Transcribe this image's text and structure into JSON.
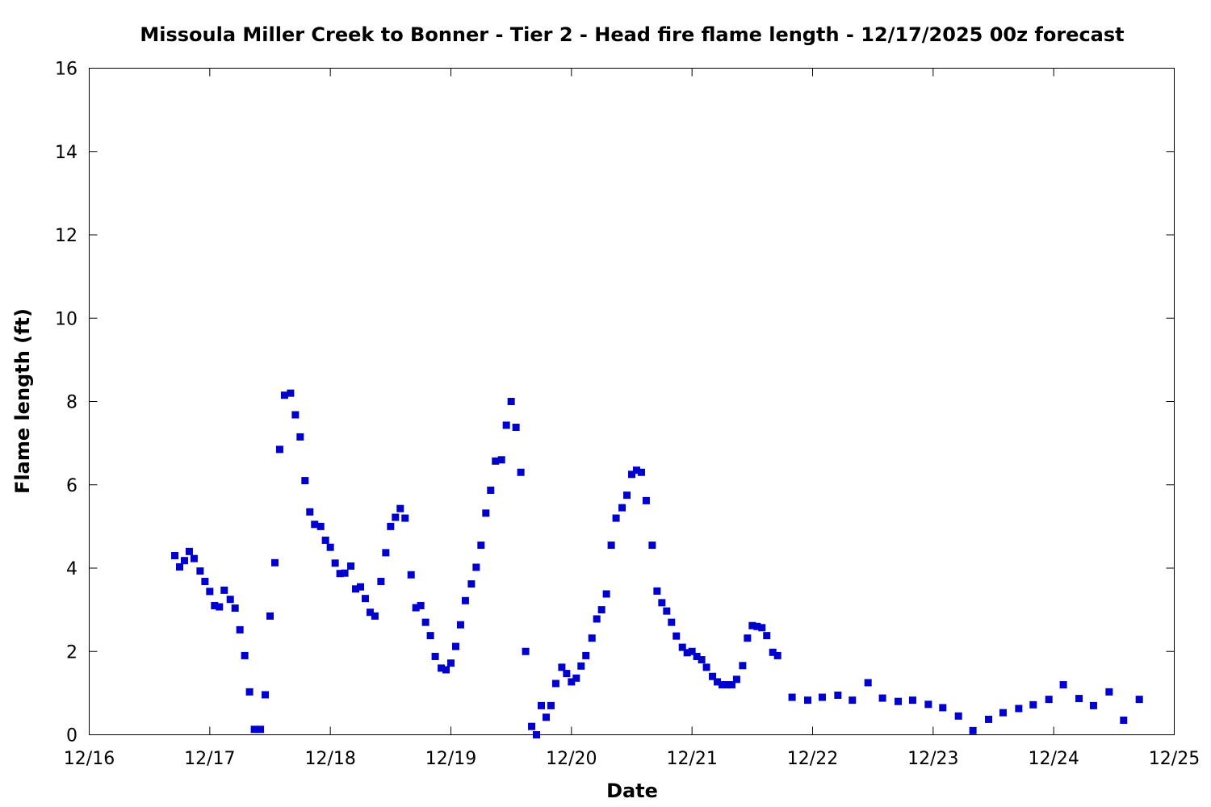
{
  "chart_data": {
    "type": "scatter",
    "title": "Missoula Miller Creek to Bonner - Tier 2 - Head fire flame length - 12/17/2025 00z forecast",
    "xlabel": "Date",
    "ylabel": "Flame length (ft)",
    "xlim": [
      "12/16",
      "12/25"
    ],
    "ylim": [
      0,
      16
    ],
    "x_ticks": [
      "12/16",
      "12/17",
      "12/18",
      "12/19",
      "12/20",
      "12/21",
      "12/22",
      "12/23",
      "12/24",
      "12/25"
    ],
    "y_ticks": [
      "0",
      "2",
      "4",
      "6",
      "8",
      "10",
      "12",
      "14",
      "16"
    ],
    "grid": false,
    "legend": "none",
    "marker_color": "#0000cc",
    "x_unit": "day-of-December (fractional)",
    "series": [
      {
        "points": [
          [
            16.71,
            4.3
          ],
          [
            16.75,
            4.03
          ],
          [
            16.79,
            4.18
          ],
          [
            16.83,
            4.4
          ],
          [
            16.87,
            4.23
          ],
          [
            16.92,
            3.93
          ],
          [
            16.96,
            3.68
          ],
          [
            17.0,
            3.44
          ],
          [
            17.04,
            3.1
          ],
          [
            17.08,
            3.07
          ],
          [
            17.12,
            3.47
          ],
          [
            17.17,
            3.25
          ],
          [
            17.21,
            3.04
          ],
          [
            17.25,
            2.52
          ],
          [
            17.29,
            1.9
          ],
          [
            17.33,
            1.03
          ],
          [
            17.37,
            0.13
          ],
          [
            17.42,
            0.13
          ],
          [
            17.46,
            0.96
          ],
          [
            17.5,
            2.85
          ],
          [
            17.54,
            4.13
          ],
          [
            17.58,
            6.85
          ],
          [
            17.62,
            8.15
          ],
          [
            17.67,
            8.2
          ],
          [
            17.71,
            7.68
          ],
          [
            17.75,
            7.15
          ],
          [
            17.79,
            6.1
          ],
          [
            17.83,
            5.35
          ],
          [
            17.87,
            5.05
          ],
          [
            17.92,
            5.0
          ],
          [
            17.96,
            4.67
          ],
          [
            18.0,
            4.5
          ],
          [
            18.04,
            4.12
          ],
          [
            18.08,
            3.87
          ],
          [
            18.12,
            3.88
          ],
          [
            18.17,
            4.05
          ],
          [
            18.21,
            3.5
          ],
          [
            18.25,
            3.55
          ],
          [
            18.29,
            3.27
          ],
          [
            18.33,
            2.94
          ],
          [
            18.37,
            2.85
          ],
          [
            18.42,
            3.68
          ],
          [
            18.46,
            4.37
          ],
          [
            18.5,
            5.0
          ],
          [
            18.54,
            5.22
          ],
          [
            18.58,
            5.43
          ],
          [
            18.62,
            5.2
          ],
          [
            18.67,
            3.84
          ],
          [
            18.71,
            3.05
          ],
          [
            18.75,
            3.1
          ],
          [
            18.79,
            2.7
          ],
          [
            18.83,
            2.38
          ],
          [
            18.87,
            1.88
          ],
          [
            18.92,
            1.6
          ],
          [
            18.96,
            1.56
          ],
          [
            19.0,
            1.72
          ],
          [
            19.04,
            2.12
          ],
          [
            19.08,
            2.64
          ],
          [
            19.12,
            3.22
          ],
          [
            19.17,
            3.62
          ],
          [
            19.21,
            4.02
          ],
          [
            19.25,
            4.55
          ],
          [
            19.29,
            5.32
          ],
          [
            19.33,
            5.87
          ],
          [
            19.37,
            6.57
          ],
          [
            19.42,
            6.6
          ],
          [
            19.46,
            7.43
          ],
          [
            19.5,
            8.0
          ],
          [
            19.54,
            7.38
          ],
          [
            19.58,
            6.3
          ],
          [
            19.62,
            2.0
          ],
          [
            19.67,
            0.2
          ],
          [
            19.71,
            0.0
          ],
          [
            19.75,
            0.7
          ],
          [
            19.79,
            0.42
          ],
          [
            19.83,
            0.7
          ],
          [
            19.87,
            1.23
          ],
          [
            19.92,
            1.62
          ],
          [
            19.96,
            1.47
          ],
          [
            20.0,
            1.27
          ],
          [
            20.04,
            1.36
          ],
          [
            20.08,
            1.65
          ],
          [
            20.12,
            1.9
          ],
          [
            20.17,
            2.32
          ],
          [
            20.21,
            2.78
          ],
          [
            20.25,
            3.0
          ],
          [
            20.29,
            3.38
          ],
          [
            20.33,
            4.55
          ],
          [
            20.37,
            5.2
          ],
          [
            20.42,
            5.45
          ],
          [
            20.46,
            5.75
          ],
          [
            20.5,
            6.25
          ],
          [
            20.54,
            6.35
          ],
          [
            20.58,
            6.3
          ],
          [
            20.62,
            5.62
          ],
          [
            20.67,
            4.55
          ],
          [
            20.71,
            3.45
          ],
          [
            20.75,
            3.17
          ],
          [
            20.79,
            2.97
          ],
          [
            20.83,
            2.7
          ],
          [
            20.87,
            2.37
          ],
          [
            20.92,
            2.1
          ],
          [
            20.96,
            1.97
          ],
          [
            21.0,
            2.0
          ],
          [
            21.04,
            1.88
          ],
          [
            21.08,
            1.8
          ],
          [
            21.12,
            1.62
          ],
          [
            21.17,
            1.4
          ],
          [
            21.21,
            1.27
          ],
          [
            21.25,
            1.2
          ],
          [
            21.29,
            1.2
          ],
          [
            21.33,
            1.2
          ],
          [
            21.37,
            1.33
          ],
          [
            21.42,
            1.66
          ],
          [
            21.46,
            2.32
          ],
          [
            21.5,
            2.62
          ],
          [
            21.54,
            2.6
          ],
          [
            21.58,
            2.57
          ],
          [
            21.62,
            2.38
          ],
          [
            21.67,
            1.98
          ],
          [
            21.71,
            1.9
          ],
          [
            21.83,
            0.9
          ],
          [
            21.96,
            0.83
          ],
          [
            22.08,
            0.9
          ],
          [
            22.21,
            0.95
          ],
          [
            22.33,
            0.83
          ],
          [
            22.46,
            1.25
          ],
          [
            22.58,
            0.88
          ],
          [
            22.71,
            0.8
          ],
          [
            22.83,
            0.83
          ],
          [
            22.96,
            0.73
          ],
          [
            23.08,
            0.65
          ],
          [
            23.21,
            0.45
          ],
          [
            23.33,
            0.1
          ],
          [
            23.46,
            0.37
          ],
          [
            23.58,
            0.53
          ],
          [
            23.71,
            0.63
          ],
          [
            23.83,
            0.72
          ],
          [
            23.96,
            0.85
          ],
          [
            24.08,
            1.2
          ],
          [
            24.21,
            0.87
          ],
          [
            24.33,
            0.7
          ],
          [
            24.46,
            1.03
          ],
          [
            24.58,
            0.35
          ],
          [
            24.71,
            0.85
          ]
        ]
      }
    ]
  }
}
